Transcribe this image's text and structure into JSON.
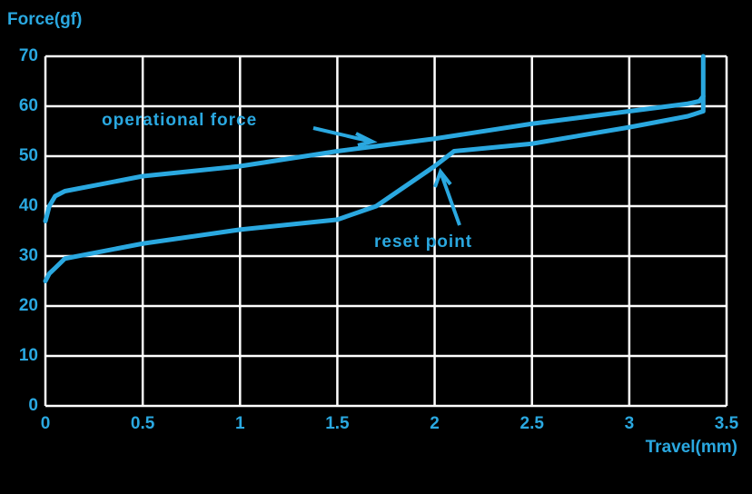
{
  "chart_data": {
    "type": "line",
    "y_label": "Force(gf)",
    "x_label": "Travel(mm)",
    "xlim": [
      0,
      3.5
    ],
    "xticks": [
      0,
      0.5,
      1,
      1.5,
      2,
      2.5,
      3,
      3.5
    ],
    "ylim": [
      0,
      70
    ],
    "yticks": [
      0,
      10,
      20,
      30,
      40,
      50,
      60,
      70
    ],
    "grid": true,
    "series": [
      {
        "color": "#2aa8e0",
        "x": [
          0,
          0.02,
          0.05,
          0.1,
          0.5,
          1,
          1.5,
          2,
          2.5,
          3,
          3.3,
          3.36,
          3.38,
          3.38
        ],
        "values": [
          37,
          40,
          42,
          43,
          46,
          48,
          51,
          53.5,
          56.5,
          59,
          60.5,
          61,
          62,
          70
        ]
      },
      {
        "color": "#2aa8e0",
        "x": [
          0,
          0.02,
          0.05,
          0.1,
          0.5,
          1,
          1.5,
          1.7,
          2,
          2.1,
          2.5,
          3,
          3.3,
          3.38,
          3.38
        ],
        "values": [
          25,
          26.5,
          27.6,
          29.5,
          32.5,
          35.3,
          37.3,
          40,
          48,
          51,
          52.5,
          55.8,
          58,
          59,
          62
        ]
      }
    ],
    "annotations": [
      {
        "text": "operational  force"
      },
      {
        "text": "reset point"
      }
    ]
  }
}
